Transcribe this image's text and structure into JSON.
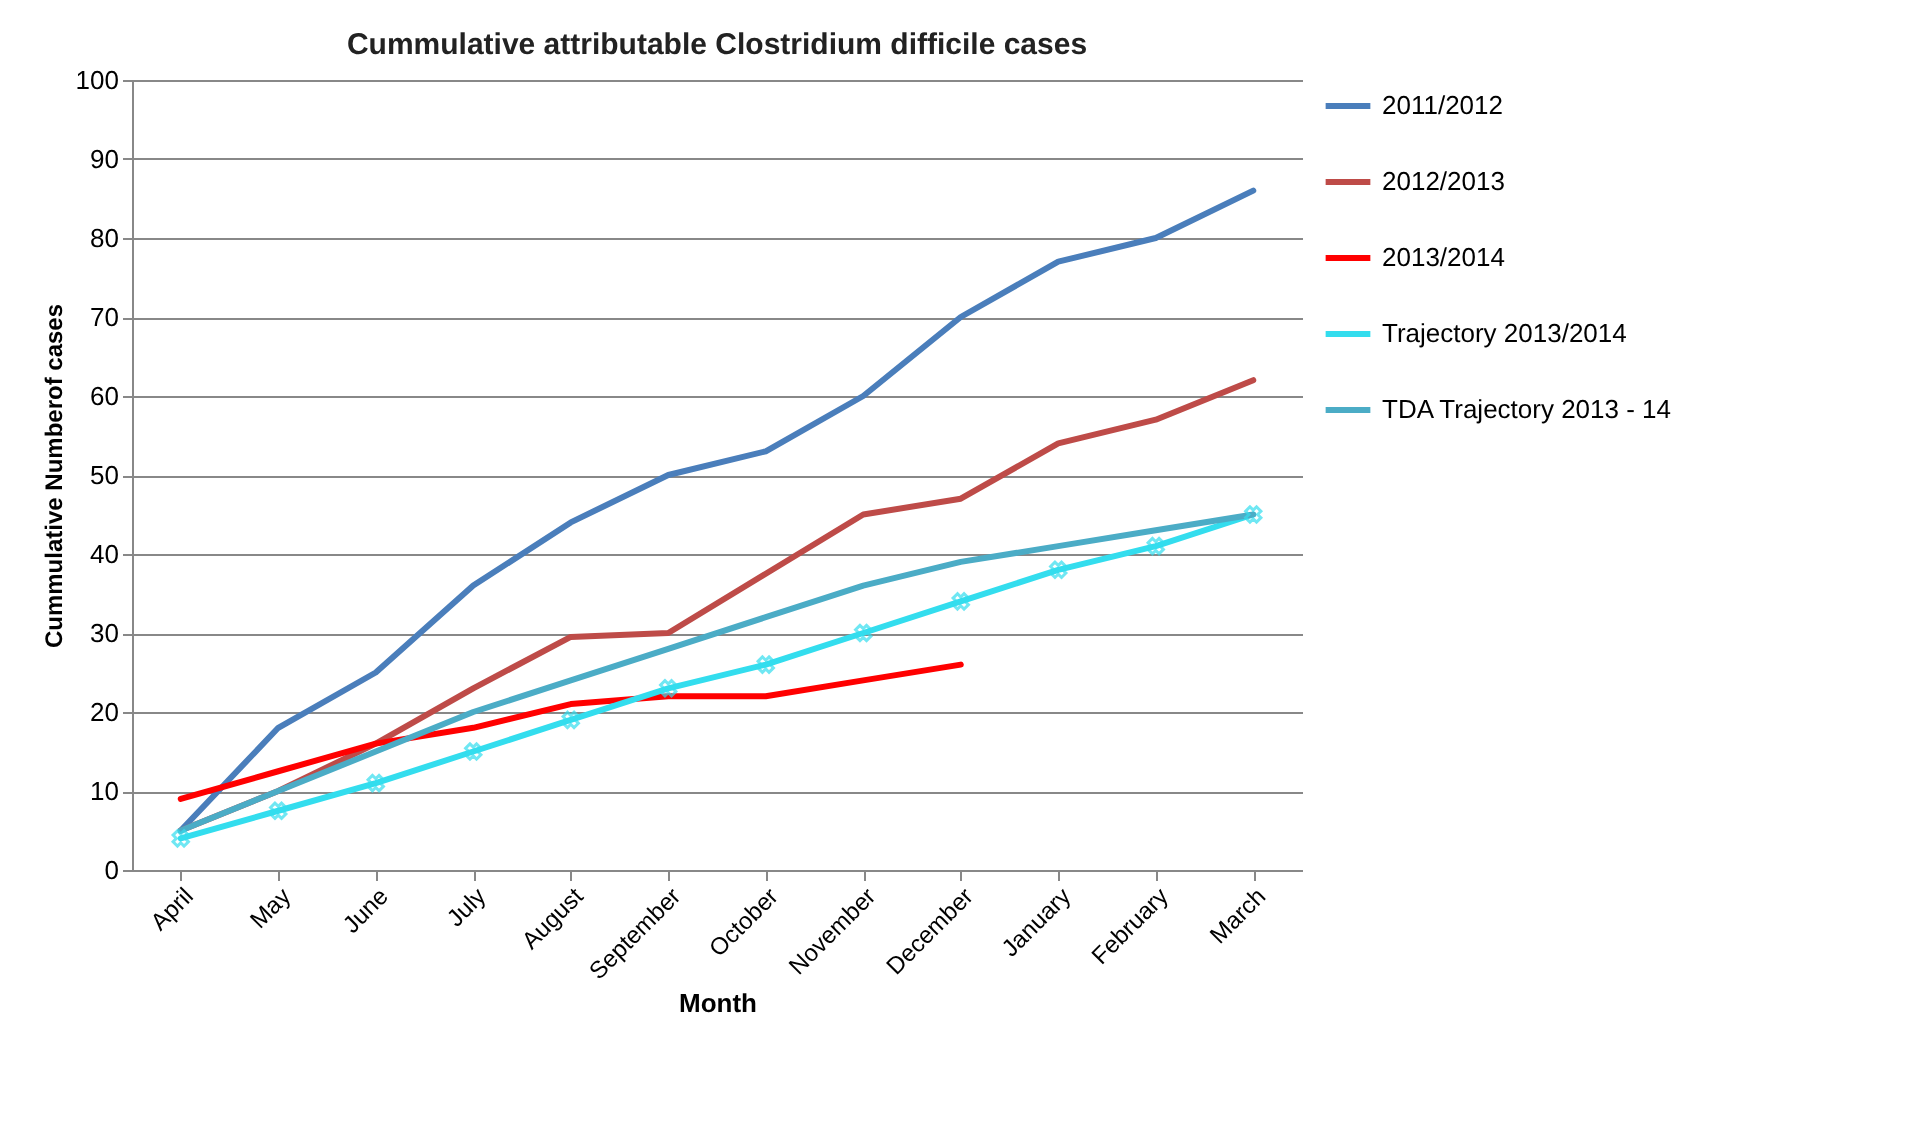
{
  "chart_data": {
    "type": "line",
    "title": "Cummulative attributable Clostridium difficile cases",
    "xlabel": "Month",
    "ylabel": "Cummulative Numberof cases",
    "categories": [
      "April",
      "May",
      "June",
      "July",
      "August",
      "September",
      "October",
      "November",
      "December",
      "January",
      "February",
      "March"
    ],
    "ylim": [
      0,
      100
    ],
    "yticks": [
      0,
      10,
      20,
      30,
      40,
      50,
      60,
      70,
      80,
      90,
      100
    ],
    "grid": "y",
    "legend": "right",
    "series": [
      {
        "name": "2011/2012",
        "color": "#4a7ebb",
        "values": [
          5,
          18,
          25,
          36,
          44,
          50,
          53,
          60,
          70,
          77,
          80,
          86
        ]
      },
      {
        "name": "2012/2013",
        "color": "#be4b48",
        "values": [
          5,
          10,
          16,
          23,
          29.5,
          30,
          37.5,
          45,
          47,
          54,
          57,
          62
        ]
      },
      {
        "name": "2013/2014",
        "color": "#ff0000",
        "values": [
          9,
          12.5,
          16,
          18,
          21,
          22,
          22,
          24,
          26,
          null,
          null,
          null
        ]
      },
      {
        "name": "Trajectory 2013/2014",
        "color": "#33ddee",
        "marker": "cross",
        "values": [
          4,
          7.5,
          11,
          15,
          19,
          23,
          26,
          30,
          34,
          38,
          41,
          45
        ]
      },
      {
        "name": "TDA Trajectory  2013 - 14",
        "color": "#4bacc6",
        "values": [
          5,
          10,
          15,
          20,
          24,
          28,
          32,
          36,
          39,
          41,
          43,
          45
        ]
      }
    ]
  }
}
